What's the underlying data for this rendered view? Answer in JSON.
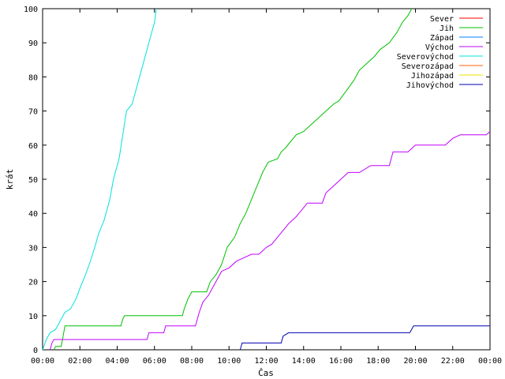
{
  "chart_data": {
    "type": "line",
    "title": "",
    "xlabel": "Čas",
    "ylabel": "krát",
    "xlim": [
      0,
      24
    ],
    "ylim": [
      0,
      100
    ],
    "grid": false,
    "legend_position": "top-right",
    "x_ticks": [
      {
        "value": 0,
        "label": "00:00"
      },
      {
        "value": 2,
        "label": "02:00"
      },
      {
        "value": 4,
        "label": "04:00"
      },
      {
        "value": 6,
        "label": "06:00"
      },
      {
        "value": 8,
        "label": "08:00"
      },
      {
        "value": 10,
        "label": "10:00"
      },
      {
        "value": 12,
        "label": "12:00"
      },
      {
        "value": 14,
        "label": "14:00"
      },
      {
        "value": 16,
        "label": "16:00"
      },
      {
        "value": 18,
        "label": "18:00"
      },
      {
        "value": 20,
        "label": "20:00"
      },
      {
        "value": 22,
        "label": "22:00"
      },
      {
        "value": 24,
        "label": "00:00"
      }
    ],
    "y_ticks": [
      {
        "value": 0,
        "label": "0"
      },
      {
        "value": 10,
        "label": "10"
      },
      {
        "value": 20,
        "label": "20"
      },
      {
        "value": 30,
        "label": "30"
      },
      {
        "value": 40,
        "label": "40"
      },
      {
        "value": 50,
        "label": "50"
      },
      {
        "value": 60,
        "label": "60"
      },
      {
        "value": 70,
        "label": "70"
      },
      {
        "value": 80,
        "label": "80"
      },
      {
        "value": 90,
        "label": "90"
      },
      {
        "value": 100,
        "label": "100"
      }
    ],
    "series": [
      {
        "name": "Sever",
        "color": "#ff0000",
        "points": []
      },
      {
        "name": "Jih",
        "color": "#00c000",
        "points": [
          [
            0.6,
            0
          ],
          [
            0.7,
            1
          ],
          [
            1.0,
            1
          ],
          [
            1.1,
            4
          ],
          [
            1.2,
            7
          ],
          [
            4.2,
            7
          ],
          [
            4.3,
            9
          ],
          [
            4.4,
            10
          ],
          [
            7.5,
            10
          ],
          [
            7.6,
            12
          ],
          [
            7.8,
            15
          ],
          [
            8.0,
            17
          ],
          [
            8.8,
            17
          ],
          [
            9.0,
            20
          ],
          [
            9.3,
            22
          ],
          [
            9.6,
            25
          ],
          [
            9.9,
            30
          ],
          [
            10.3,
            33
          ],
          [
            10.6,
            37
          ],
          [
            10.9,
            40
          ],
          [
            11.2,
            44
          ],
          [
            11.5,
            48
          ],
          [
            11.8,
            52
          ],
          [
            12.1,
            55
          ],
          [
            12.6,
            56
          ],
          [
            12.8,
            58
          ],
          [
            13.0,
            59
          ],
          [
            13.3,
            61
          ],
          [
            13.6,
            63
          ],
          [
            14.0,
            64
          ],
          [
            14.4,
            66
          ],
          [
            14.8,
            68
          ],
          [
            15.2,
            70
          ],
          [
            15.6,
            72
          ],
          [
            15.9,
            73
          ],
          [
            16.3,
            76
          ],
          [
            16.7,
            79
          ],
          [
            17.0,
            82
          ],
          [
            17.4,
            84
          ],
          [
            17.8,
            86
          ],
          [
            18.1,
            88
          ],
          [
            18.6,
            90
          ],
          [
            19.0,
            93
          ],
          [
            19.3,
            96
          ],
          [
            19.6,
            98
          ],
          [
            19.8,
            100
          ]
        ]
      },
      {
        "name": "Západ",
        "color": "#0080ff",
        "points": []
      },
      {
        "name": "Východ",
        "color": "#c000ff",
        "points": [
          [
            0.4,
            0
          ],
          [
            0.5,
            2
          ],
          [
            0.6,
            3
          ],
          [
            5.6,
            3
          ],
          [
            5.7,
            5
          ],
          [
            6.5,
            5
          ],
          [
            6.6,
            7
          ],
          [
            8.2,
            7
          ],
          [
            8.4,
            11
          ],
          [
            8.6,
            14
          ],
          [
            8.9,
            16
          ],
          [
            9.2,
            19
          ],
          [
            9.4,
            21
          ],
          [
            9.6,
            23
          ],
          [
            10.0,
            24
          ],
          [
            10.4,
            26
          ],
          [
            10.8,
            27
          ],
          [
            11.2,
            28
          ],
          [
            11.6,
            28
          ],
          [
            12.0,
            30
          ],
          [
            12.3,
            31
          ],
          [
            12.6,
            33
          ],
          [
            12.9,
            35
          ],
          [
            13.2,
            37
          ],
          [
            13.6,
            39
          ],
          [
            13.9,
            41
          ],
          [
            14.2,
            43
          ],
          [
            15.0,
            43
          ],
          [
            15.2,
            46
          ],
          [
            15.6,
            48
          ],
          [
            16.0,
            50
          ],
          [
            16.4,
            52
          ],
          [
            17.0,
            52
          ],
          [
            17.6,
            54
          ],
          [
            18.6,
            54
          ],
          [
            18.8,
            58
          ],
          [
            19.6,
            58
          ],
          [
            20.0,
            60
          ],
          [
            21.6,
            60
          ],
          [
            22.0,
            62
          ],
          [
            22.4,
            63
          ],
          [
            23.8,
            63
          ],
          [
            24.0,
            64
          ]
        ]
      },
      {
        "name": "Severovýchod",
        "color": "#00e0e0",
        "points": [
          [
            0.0,
            0
          ],
          [
            0.2,
            3
          ],
          [
            0.4,
            5
          ],
          [
            0.7,
            6
          ],
          [
            0.9,
            8
          ],
          [
            1.2,
            11
          ],
          [
            1.5,
            12
          ],
          [
            1.8,
            15
          ],
          [
            2.0,
            18
          ],
          [
            2.3,
            22
          ],
          [
            2.5,
            25
          ],
          [
            2.8,
            30
          ],
          [
            3.0,
            34
          ],
          [
            3.3,
            38
          ],
          [
            3.6,
            44
          ],
          [
            3.8,
            50
          ],
          [
            4.1,
            56
          ],
          [
            4.3,
            63
          ],
          [
            4.5,
            70
          ],
          [
            4.8,
            72
          ],
          [
            5.1,
            78
          ],
          [
            5.4,
            84
          ],
          [
            5.6,
            88
          ],
          [
            5.8,
            92
          ],
          [
            6.0,
            96
          ],
          [
            6.1,
            100
          ]
        ]
      },
      {
        "name": "Severozápad",
        "color": "#ff6000",
        "points": []
      },
      {
        "name": "Jihozápad",
        "color": "#f0e000",
        "points": []
      },
      {
        "name": "Jihovýchod",
        "color": "#0000b0",
        "points": [
          [
            10.6,
            0
          ],
          [
            10.7,
            2
          ],
          [
            12.8,
            2
          ],
          [
            12.9,
            4
          ],
          [
            13.2,
            5
          ],
          [
            19.7,
            5
          ],
          [
            19.9,
            7
          ],
          [
            24.0,
            7
          ]
        ]
      }
    ]
  }
}
